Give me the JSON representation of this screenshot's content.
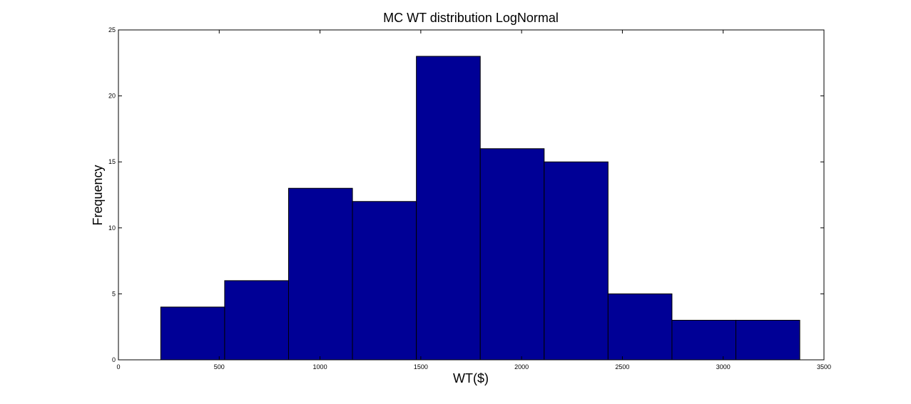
{
  "chart_data": {
    "type": "bar",
    "title": "MC WT distribution LogNormal",
    "xlabel": "WT($)",
    "ylabel": "Frequency",
    "xlim": [
      0,
      3500
    ],
    "ylim": [
      0,
      25
    ],
    "xticks": [
      0,
      500,
      1000,
      1500,
      2000,
      2500,
      3000,
      3500
    ],
    "yticks": [
      0,
      5,
      10,
      15,
      20,
      25
    ],
    "grid": false,
    "bar_color": "#000096",
    "bins": [
      {
        "x0": 210,
        "x1": 527,
        "value": 4
      },
      {
        "x0": 527,
        "x1": 844,
        "value": 6
      },
      {
        "x0": 844,
        "x1": 1161,
        "value": 13
      },
      {
        "x0": 1161,
        "x1": 1478,
        "value": 12
      },
      {
        "x0": 1478,
        "x1": 1795,
        "value": 23
      },
      {
        "x0": 1795,
        "x1": 2112,
        "value": 16
      },
      {
        "x0": 2112,
        "x1": 2429,
        "value": 15
      },
      {
        "x0": 2429,
        "x1": 2746,
        "value": 5
      },
      {
        "x0": 2746,
        "x1": 3063,
        "value": 3
      },
      {
        "x0": 3063,
        "x1": 3380,
        "value": 3
      }
    ]
  }
}
